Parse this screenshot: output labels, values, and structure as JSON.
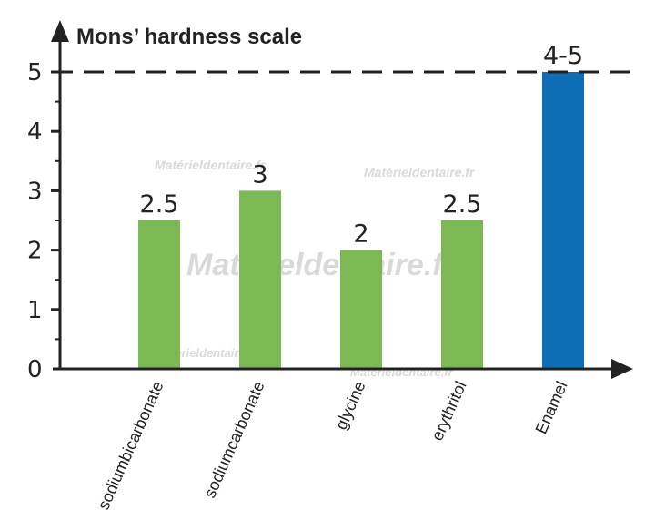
{
  "chart_data": {
    "type": "bar",
    "title": "Mons’ hardness scale",
    "categories": [
      "sodiumbicarbonate",
      "sodiumcarbonate",
      "glycine",
      "erythritol",
      "Enamel"
    ],
    "values": [
      2.5,
      3,
      2,
      2.5,
      5
    ],
    "value_labels": [
      "2.5",
      "3",
      "2",
      "2.5",
      "4-5"
    ],
    "bar_colors": [
      "#7cb955",
      "#7cb955",
      "#7cb955",
      "#7cb955",
      "#0f6db5"
    ],
    "ylim": [
      0,
      5
    ],
    "yticks": [
      0,
      1,
      2,
      3,
      4,
      5
    ],
    "reference_line": 5,
    "grid": false,
    "legend": "none"
  },
  "watermarks": [
    "Matérieldentaire.fr",
    "Matérieldentaire.fr",
    "Matérieldentaire.fr",
    "Matérieldentaire.fr",
    "Matérieldentaire.fr"
  ]
}
